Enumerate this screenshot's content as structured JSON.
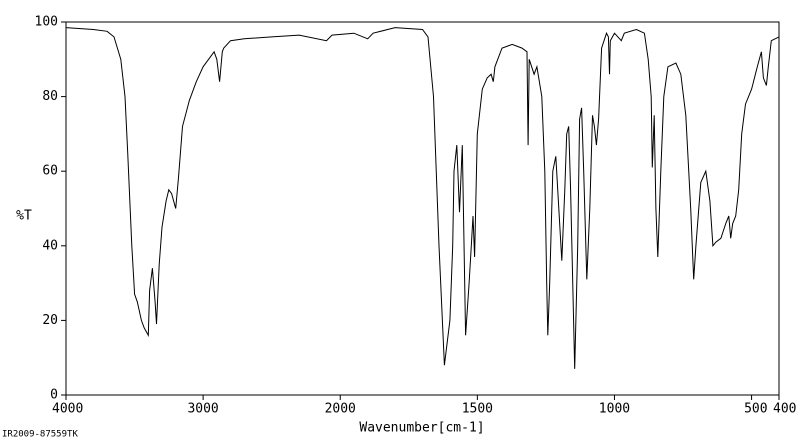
{
  "chart_data": {
    "type": "line",
    "x_label": "Wavenumber[cm-1]",
    "y_label": "%T",
    "footer": "IR2009-87559TK",
    "xlim": [
      4000,
      400
    ],
    "xticks": [
      4000,
      3000,
      2000,
      1500,
      1000,
      500,
      400
    ],
    "x_scale_change": {
      "at": 2000,
      "factor": 2
    },
    "ylim": [
      0,
      100
    ],
    "yticks": [
      0,
      20,
      40,
      60,
      80,
      100
    ],
    "series": [
      {
        "color": "#000000",
        "x": [
          4000,
          3800,
          3700,
          3650,
          3600,
          3570,
          3550,
          3520,
          3500,
          3480,
          3450,
          3430,
          3400,
          3390,
          3370,
          3350,
          3340,
          3320,
          3300,
          3270,
          3250,
          3230,
          3200,
          3180,
          3150,
          3100,
          3050,
          3000,
          2960,
          2920,
          2900,
          2880,
          2860,
          2850,
          2800,
          2700,
          2500,
          2300,
          2100,
          2060,
          1950,
          1900,
          1880,
          1800,
          1700,
          1680,
          1660,
          1640,
          1620,
          1600,
          1590,
          1585,
          1575,
          1565,
          1555,
          1543,
          1530,
          1522,
          1516,
          1510,
          1500,
          1482,
          1464,
          1450,
          1442,
          1436,
          1410,
          1373,
          1337,
          1319,
          1315,
          1311,
          1293,
          1283,
          1265,
          1254,
          1247,
          1243,
          1236,
          1225,
          1214,
          1203,
          1192,
          1181,
          1174,
          1167,
          1160,
          1145,
          1134,
          1127,
          1120,
          1112,
          1101,
          1090,
          1080,
          1073,
          1066,
          1058,
          1047,
          1029,
          1022,
          1018,
          1015,
          1000,
          975,
          964,
          920,
          891,
          877,
          866,
          862,
          855,
          849,
          842,
          831,
          820,
          805,
          776,
          758,
          740,
          722,
          711,
          703,
          685,
          667,
          652,
          641,
          630,
          612,
          594,
          583,
          576,
          569,
          558,
          547,
          536,
          522,
          500,
          493,
          479,
          464,
          457,
          446,
          439,
          428,
          400
        ],
        "values": [
          98.5,
          98,
          97.5,
          96,
          90,
          80,
          65,
          40,
          27,
          25,
          20,
          18,
          16,
          28,
          34,
          25,
          19,
          35,
          45,
          52,
          55,
          54,
          50,
          58,
          72,
          79,
          84,
          88,
          90,
          92,
          90,
          84,
          92,
          93,
          95,
          95.5,
          96,
          96.5,
          95,
          96.5,
          97,
          95.5,
          97,
          98.5,
          98,
          96,
          80,
          40,
          8,
          20,
          40,
          60,
          67,
          49,
          67,
          16,
          30,
          40,
          48,
          37,
          70,
          82,
          85,
          86,
          84,
          88,
          93,
          94,
          93,
          92,
          67,
          90,
          86,
          88,
          80,
          60,
          30,
          16,
          30,
          60,
          64,
          50,
          36,
          55,
          70,
          72,
          55,
          7,
          40,
          74,
          77,
          60,
          31,
          50,
          75,
          72,
          67,
          74,
          93,
          97,
          96,
          86,
          95,
          97,
          95,
          97,
          98,
          97,
          90,
          80,
          61,
          75,
          50,
          37,
          60,
          80,
          88,
          89,
          86,
          75,
          50,
          31,
          40,
          57,
          60,
          52,
          40,
          41,
          42,
          46,
          48,
          42,
          46,
          48,
          55,
          70,
          78,
          82,
          84,
          88,
          92,
          85,
          83,
          88,
          95,
          96
        ]
      }
    ]
  }
}
